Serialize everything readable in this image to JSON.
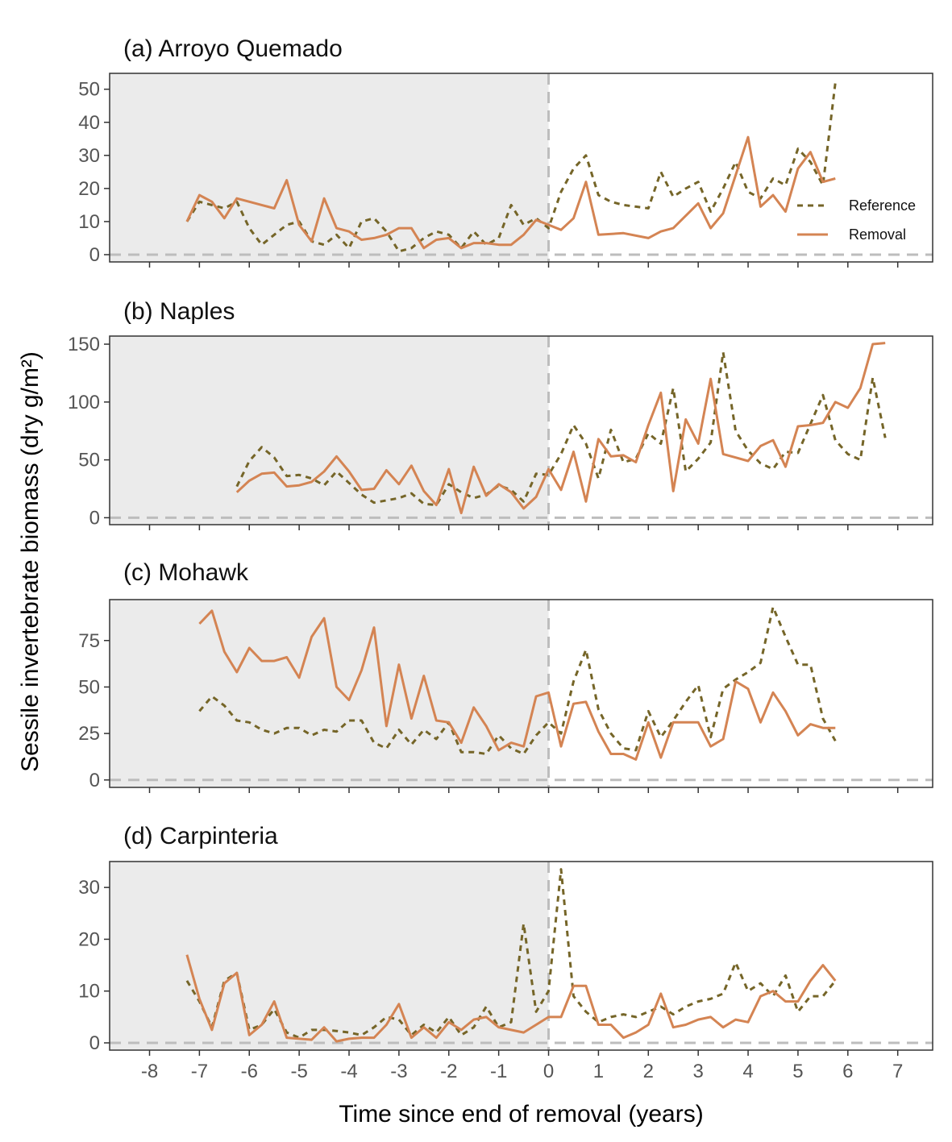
{
  "chart_data": {
    "type": "line",
    "figure": {
      "xlabel": "Time since end of removal (years)",
      "ylabel": "Sessile invertebrate biomass (dry g/m²)",
      "xlim": [
        -8.8,
        7.7
      ],
      "x_ticks": [
        -8,
        -7,
        -6,
        -5,
        -4,
        -3,
        -2,
        -1,
        0,
        1,
        2,
        3,
        4,
        5,
        6,
        7
      ],
      "x_tick_labels": [
        "-8",
        "-7",
        "-6",
        "-5",
        "-4",
        "-3",
        "-2",
        "-1",
        "0",
        "1",
        "2",
        "3",
        "4",
        "5",
        "6",
        "7"
      ],
      "shaded_region": [
        -8.8,
        0
      ],
      "vline_x": 0,
      "hline_y": 0,
      "legend": {
        "placement": "inside-bottom-right of panel (a)",
        "entries": [
          {
            "label": "Reference",
            "style": "dashed",
            "color": "#756528"
          },
          {
            "label": "Removal",
            "style": "solid",
            "color": "#d48453"
          }
        ]
      },
      "colors": {
        "reference": "#756528",
        "removal": "#d48453",
        "shade": "#ebebeb",
        "guide": "#bdbdbd",
        "frame": "#333333"
      }
    },
    "panels": [
      {
        "title": "(a) Arroyo Quemado",
        "ylim": [
          -2.2,
          54.8
        ],
        "y_ticks": [
          0,
          10,
          20,
          30,
          40,
          50
        ],
        "y_tick_labels": [
          "0",
          "10",
          "20",
          "30",
          "40",
          "50"
        ],
        "series": [
          {
            "name": "Reference",
            "x": [
              -7.25,
              -7.0,
              -6.75,
              -6.5,
              -6.25,
              -6.0,
              -5.75,
              -5.5,
              -5.25,
              -5.0,
              -4.75,
              -4.5,
              -4.25,
              -4.0,
              -3.75,
              -3.5,
              -3.25,
              -3.0,
              -2.75,
              -2.5,
              -2.25,
              -2.0,
              -1.75,
              -1.5,
              -1.25,
              -1.0,
              -0.75,
              -0.5,
              -0.25,
              0.0,
              0.25,
              0.5,
              0.75,
              1.0,
              1.25,
              1.5,
              1.75,
              2.0,
              2.25,
              2.5,
              2.75,
              3.0,
              3.25,
              3.5,
              3.75,
              4.0,
              4.25,
              4.5,
              4.75,
              5.0,
              5.25,
              5.5,
              5.75
            ],
            "values": [
              10,
              16,
              15,
              14,
              16,
              8,
              3,
              6,
              9,
              10,
              4,
              3,
              6,
              2,
              10,
              11,
              7,
              1,
              2,
              5,
              7,
              6,
              2,
              7,
              3,
              5,
              15,
              9,
              11,
              8,
              19,
              26,
              30,
              18,
              16,
              15,
              14.5,
              14,
              25,
              17.5,
              20,
              22,
              13,
              20,
              28,
              19,
              17,
              23,
              21,
              32,
              28,
              21,
              52
            ]
          },
          {
            "name": "Removal",
            "x": [
              -7.25,
              -7.0,
              -6.75,
              -6.5,
              -6.25,
              -6.0,
              -5.75,
              -5.5,
              -5.25,
              -5.0,
              -4.75,
              -4.5,
              -4.25,
              -4.0,
              -3.75,
              -3.5,
              -3.25,
              -3.0,
              -2.75,
              -2.5,
              -2.25,
              -2.0,
              -1.75,
              -1.5,
              -1.25,
              -1.0,
              -0.75,
              -0.5,
              -0.25,
              0.0,
              0.25,
              0.5,
              0.75,
              1.0,
              1.5,
              2.0,
              2.25,
              2.5,
              3.0,
              3.25,
              3.5,
              3.75,
              4.0,
              4.25,
              4.5,
              4.75,
              5.0,
              5.25,
              5.5,
              5.75
            ],
            "values": [
              10,
              18,
              16,
              11,
              17,
              16,
              15,
              14,
              22.5,
              9,
              4,
              17,
              8,
              7,
              4.5,
              5,
              6,
              8,
              8,
              2,
              4.5,
              5,
              2,
              3.5,
              3.5,
              3,
              3,
              6,
              10.5,
              9,
              7.5,
              11,
              22,
              6,
              6.5,
              5,
              7,
              8,
              15.5,
              8,
              12.5,
              24,
              35.5,
              14.5,
              18,
              13,
              26,
              31,
              22,
              23
            ]
          }
        ]
      },
      {
        "title": "(b) Naples",
        "ylim": [
          -6,
          157
        ],
        "y_ticks": [
          0,
          50,
          100,
          150
        ],
        "y_tick_labels": [
          "0",
          "50",
          "100",
          "150"
        ],
        "series": [
          {
            "name": "Reference",
            "x": [
              -6.25,
              -6.0,
              -5.75,
              -5.5,
              -5.25,
              -5.0,
              -4.75,
              -4.5,
              -4.25,
              -4.0,
              -3.75,
              -3.5,
              -3.25,
              -3.0,
              -2.75,
              -2.5,
              -2.25,
              -2.0,
              -1.75,
              -1.5,
              -1.25,
              -1.0,
              -0.75,
              -0.5,
              -0.25,
              0.0,
              0.25,
              0.5,
              0.75,
              1.0,
              1.25,
              1.5,
              1.75,
              2.0,
              2.25,
              2.5,
              2.75,
              3.0,
              3.25,
              3.5,
              3.75,
              4.0,
              4.25,
              4.5,
              4.75,
              5.0,
              5.25,
              5.5,
              5.75,
              6.0,
              6.25,
              6.5,
              6.75
            ],
            "values": [
              27,
              49,
              61,
              52,
              36,
              37,
              34,
              28,
              40,
              30,
              20,
              13,
              15,
              17,
              21,
              12,
              11,
              29,
              22,
              17,
              20,
              28,
              24,
              14,
              38,
              37,
              55,
              80,
              64,
              34,
              76,
              48,
              51,
              73,
              64,
              112,
              40,
              51,
              65,
              143,
              75,
              58,
              47,
              42,
              57,
              56,
              81,
              106,
              67,
              55,
              50,
              121,
              69
            ]
          },
          {
            "name": "Removal",
            "x": [
              -6.25,
              -6.0,
              -5.75,
              -5.5,
              -5.25,
              -5.0,
              -4.75,
              -4.5,
              -4.25,
              -4.0,
              -3.75,
              -3.5,
              -3.25,
              -3.0,
              -2.75,
              -2.5,
              -2.25,
              -2.0,
              -1.75,
              -1.5,
              -1.25,
              -1.0,
              -0.75,
              -0.5,
              -0.25,
              0.0,
              0.25,
              0.5,
              0.75,
              1.0,
              1.25,
              1.5,
              1.75,
              2.0,
              2.25,
              2.5,
              2.75,
              3.0,
              3.25,
              3.5,
              3.75,
              4.0,
              4.25,
              4.5,
              4.75,
              5.0,
              5.25,
              5.5,
              5.75,
              6.0,
              6.25,
              6.5,
              6.75
            ],
            "values": [
              22,
              32,
              38,
              39,
              27,
              28,
              31,
              40,
              53,
              40,
              24,
              25,
              41,
              29,
              45,
              23,
              11,
              42,
              4,
              44,
              19,
              29,
              22,
              8,
              18,
              42,
              24,
              57,
              14,
              68,
              53,
              54,
              48,
              80,
              108,
              23,
              85,
              64,
              120,
              55,
              52,
              49,
              62,
              67,
              44,
              79,
              80,
              82,
              100,
              95,
              112,
              150,
              151
            ]
          }
        ]
      },
      {
        "title": "(c) Mohawk",
        "ylim": [
          -4,
          97
        ],
        "y_ticks": [
          0,
          25,
          50,
          75
        ],
        "y_tick_labels": [
          "0",
          "25",
          "50",
          "75"
        ],
        "series": [
          {
            "name": "Reference",
            "x": [
              -7.0,
              -6.75,
              -6.5,
              -6.25,
              -6.0,
              -5.75,
              -5.5,
              -5.25,
              -5.0,
              -4.75,
              -4.5,
              -4.25,
              -4.0,
              -3.75,
              -3.5,
              -3.25,
              -3.0,
              -2.75,
              -2.5,
              -2.25,
              -2.0,
              -1.75,
              -1.5,
              -1.25,
              -1.0,
              -0.75,
              -0.5,
              -0.25,
              0.0,
              0.25,
              0.5,
              0.75,
              1.0,
              1.25,
              1.5,
              1.75,
              2.0,
              2.25,
              2.5,
              2.75,
              3.0,
              3.25,
              3.5,
              3.75,
              4.0,
              4.25,
              4.5,
              4.75,
              5.0,
              5.25,
              5.5,
              5.75
            ],
            "values": [
              37,
              45,
              40,
              32,
              31,
              27,
              25,
              28,
              28,
              24,
              27,
              26,
              32,
              32,
              20,
              17,
              27,
              19,
              27,
              22,
              31,
              15,
              15,
              14,
              24,
              17,
              14,
              24,
              31,
              25,
              53,
              70,
              38,
              25,
              17,
              16,
              37,
              23,
              32,
              42,
              51,
              23,
              49,
              54,
              58,
              63,
              93,
              77,
              62,
              62,
              33,
              21
            ]
          },
          {
            "name": "Removal",
            "x": [
              -7.0,
              -6.75,
              -6.5,
              -6.25,
              -6.0,
              -5.75,
              -5.5,
              -5.25,
              -5.0,
              -4.75,
              -4.5,
              -4.25,
              -4.0,
              -3.75,
              -3.5,
              -3.25,
              -3.0,
              -2.75,
              -2.5,
              -2.25,
              -2.0,
              -1.75,
              -1.5,
              -1.25,
              -1.0,
              -0.75,
              -0.5,
              -0.25,
              0.0,
              0.25,
              0.5,
              0.75,
              1.0,
              1.25,
              1.5,
              1.75,
              2.0,
              2.25,
              2.5,
              2.75,
              3.0,
              3.25,
              3.5,
              3.75,
              4.0,
              4.25,
              4.5,
              4.75,
              5.0,
              5.25,
              5.5,
              5.75
            ],
            "values": [
              84,
              91,
              69,
              58,
              71,
              64,
              64,
              66,
              55,
              77,
              87,
              50,
              43,
              59,
              82,
              29,
              62,
              33,
              56,
              32,
              31,
              20,
              39,
              29,
              16,
              20,
              18,
              45,
              47,
              18,
              41,
              42,
              26,
              14,
              14,
              11,
              31,
              12,
              31,
              31,
              31,
              18,
              22,
              53,
              49,
              31,
              47,
              37,
              24,
              30,
              28,
              28
            ]
          }
        ]
      },
      {
        "title": "(d) Carpinteria",
        "ylim": [
          -1.4,
          35.0
        ],
        "y_ticks": [
          0,
          10,
          20,
          30
        ],
        "y_tick_labels": [
          "0",
          "10",
          "20",
          "30"
        ],
        "series": [
          {
            "name": "Reference",
            "x": [
              -7.25,
              -7.0,
              -6.75,
              -6.5,
              -6.25,
              -6.0,
              -5.75,
              -5.5,
              -5.25,
              -5.0,
              -4.75,
              -4.5,
              -4.25,
              -4.0,
              -3.75,
              -3.5,
              -3.25,
              -3.0,
              -2.75,
              -2.5,
              -2.25,
              -2.0,
              -1.75,
              -1.5,
              -1.25,
              -1.0,
              -0.75,
              -0.5,
              -0.25,
              0.0,
              0.25,
              0.5,
              0.75,
              1.0,
              1.25,
              1.5,
              1.75,
              2.0,
              2.25,
              2.5,
              2.75,
              3.0,
              3.25,
              3.5,
              3.75,
              4.0,
              4.25,
              4.5,
              4.75,
              5.0,
              5.25,
              5.5,
              5.75
            ],
            "values": [
              12,
              8,
              3,
              12,
              13.5,
              2.5,
              3.5,
              6.5,
              2,
              1,
              2.5,
              2.5,
              2.3,
              2,
              1.5,
              3,
              5,
              4.5,
              1.5,
              3.5,
              2,
              5,
              1.5,
              3,
              7,
              3,
              4,
              23,
              6,
              10,
              33.5,
              9,
              6,
              4,
              5,
              5.5,
              5,
              6,
              7,
              5.5,
              7,
              8,
              8.5,
              9.5,
              15.5,
              10,
              11.5,
              9,
              13,
              6,
              9,
              9,
              12
            ]
          },
          {
            "name": "Removal",
            "x": [
              -7.25,
              -7.0,
              -6.75,
              -6.5,
              -6.25,
              -6.0,
              -5.75,
              -5.5,
              -5.25,
              -5.0,
              -4.75,
              -4.5,
              -4.25,
              -4.0,
              -3.75,
              -3.5,
              -3.25,
              -3.0,
              -2.75,
              -2.5,
              -2.25,
              -2.0,
              -1.75,
              -1.5,
              -1.25,
              -1.0,
              -0.75,
              -0.5,
              -0.25,
              0.0,
              0.25,
              0.5,
              0.75,
              1.0,
              1.25,
              1.5,
              1.75,
              2.0,
              2.25,
              2.5,
              2.75,
              3.0,
              3.25,
              3.5,
              3.75,
              4.0,
              4.25,
              4.5,
              4.75,
              5.0,
              5.25,
              5.5,
              5.75
            ],
            "values": [
              17,
              8.5,
              2.5,
              11.5,
              13.5,
              1.5,
              3.5,
              8,
              1,
              0.8,
              0.6,
              3,
              0.3,
              0.8,
              1,
              1,
              3.5,
              7.5,
              1,
              3,
              1,
              4,
              2.5,
              4.5,
              5,
              3,
              2.5,
              2,
              3.5,
              5,
              5,
              11,
              11,
              3.5,
              3.5,
              1,
              2,
              3.5,
              9.5,
              3,
              3.5,
              4.5,
              5,
              3,
              4.5,
              4,
              9,
              10,
              8,
              8,
              12,
              15,
              12
            ]
          }
        ]
      }
    ]
  }
}
